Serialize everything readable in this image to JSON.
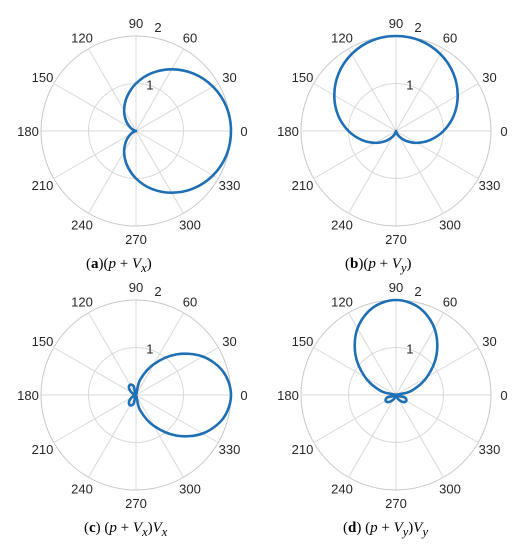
{
  "chart_data": [
    {
      "type": "polar-line",
      "caption": {
        "letter": "a",
        "expr": "(p + V_x)"
      },
      "theta_ticks": [
        "0",
        "30",
        "60",
        "90",
        "120",
        "150",
        "180",
        "210",
        "240",
        "270",
        "300",
        "330"
      ],
      "r_ticks": [
        "1",
        "2"
      ],
      "rlim": [
        0,
        2
      ],
      "theta_deg": [
        0,
        15,
        30,
        45,
        60,
        75,
        90,
        105,
        120,
        135,
        150,
        165,
        180,
        195,
        210,
        225,
        240,
        255,
        270,
        285,
        300,
        315,
        330,
        345
      ],
      "r": [
        2,
        1.97,
        1.87,
        1.71,
        1.5,
        1.26,
        1,
        0.74,
        0.5,
        0.29,
        0.13,
        0.03,
        0,
        0.03,
        0.13,
        0.29,
        0.5,
        0.74,
        1,
        1.26,
        1.5,
        1.71,
        1.87,
        1.97
      ],
      "line_color": "#1f6fb4",
      "grid": true
    },
    {
      "type": "polar-line",
      "caption": {
        "letter": "b",
        "expr": "(p + V_y)"
      },
      "theta_ticks": [
        "0",
        "30",
        "60",
        "90",
        "120",
        "150",
        "180",
        "210",
        "240",
        "270",
        "300",
        "330"
      ],
      "r_ticks": [
        "1",
        "2"
      ],
      "rlim": [
        0,
        2
      ],
      "theta_deg": [
        0,
        15,
        30,
        45,
        60,
        75,
        90,
        105,
        120,
        135,
        150,
        165,
        180,
        195,
        210,
        225,
        240,
        255,
        270,
        285,
        300,
        315,
        330,
        345
      ],
      "r": [
        1,
        1.26,
        1.5,
        1.71,
        1.87,
        1.97,
        2,
        1.97,
        1.87,
        1.71,
        1.5,
        1.26,
        1,
        0.74,
        0.5,
        0.29,
        0.13,
        0.03,
        0,
        0.03,
        0.13,
        0.29,
        0.5,
        0.74
      ],
      "line_color": "#1f6fb4",
      "grid": true
    },
    {
      "type": "polar-line",
      "caption": {
        "letter": "c",
        "expr": "(p + V_x)V_x"
      },
      "theta_ticks": [
        "0",
        "30",
        "60",
        "90",
        "120",
        "150",
        "180",
        "210",
        "240",
        "270",
        "300",
        "330"
      ],
      "r_ticks": [
        "1",
        "2"
      ],
      "rlim": [
        0,
        2
      ],
      "theta_deg": [
        0,
        15,
        30,
        45,
        60,
        75,
        90,
        105,
        120,
        135,
        150,
        165,
        180,
        195,
        210,
        225,
        240,
        255,
        270,
        285,
        300,
        315,
        330,
        345
      ],
      "r": [
        2,
        1.9,
        1.62,
        1.21,
        0.75,
        0.33,
        0,
        0.19,
        0.25,
        0.21,
        0.11,
        0.03,
        0,
        0.03,
        0.11,
        0.21,
        0.25,
        0.19,
        0,
        0.33,
        0.75,
        1.21,
        1.62,
        1.9
      ],
      "line_color": "#1f6fb4",
      "grid": true
    },
    {
      "type": "polar-line",
      "caption": {
        "letter": "d",
        "expr": "(p + V_y)V_y"
      },
      "theta_ticks": [
        "0",
        "30",
        "60",
        "90",
        "120",
        "150",
        "180",
        "210",
        "240",
        "270",
        "300",
        "330"
      ],
      "r_ticks": [
        "1",
        "2"
      ],
      "rlim": [
        0,
        2
      ],
      "theta_deg": [
        0,
        15,
        30,
        45,
        60,
        75,
        90,
        105,
        120,
        135,
        150,
        165,
        180,
        195,
        210,
        225,
        240,
        255,
        270,
        285,
        300,
        315,
        330,
        345
      ],
      "r": [
        0,
        0.33,
        0.75,
        1.21,
        1.62,
        1.9,
        2,
        1.9,
        1.62,
        1.21,
        0.75,
        0.33,
        0,
        0.19,
        0.25,
        0.21,
        0.11,
        0.03,
        0,
        0.03,
        0.11,
        0.21,
        0.25,
        0.19
      ],
      "line_color": "#1f6fb4",
      "grid": true
    }
  ]
}
